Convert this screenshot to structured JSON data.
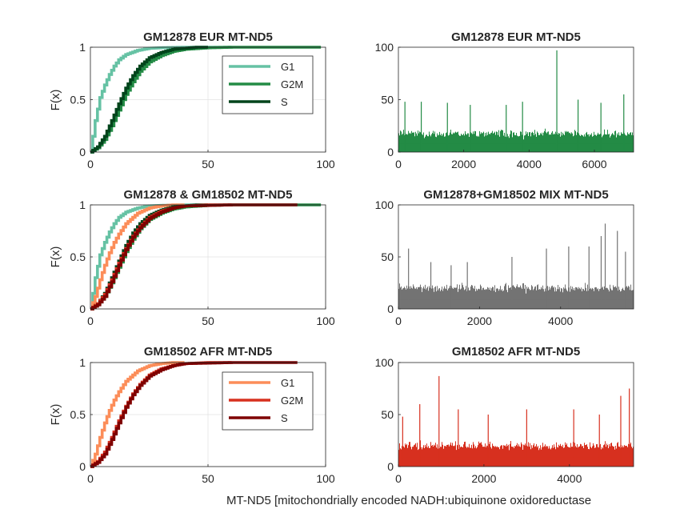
{
  "figure": {
    "xlabel": "MT-ND5 [mitochondrially encoded NADH:ubiquinone oxidoreductase"
  },
  "colors": {
    "eur_g1": "#66c2a4",
    "eur_g2m": "#238b45",
    "eur_s": "#00441b",
    "afr_g1": "#fc8d59",
    "afr_g2m": "#d7301f",
    "afr_s": "#7f0000",
    "mix_hist": "#737373"
  },
  "chart_data": [
    {
      "id": "cdf_eur",
      "type": "line",
      "title": "GM12878 EUR MT-ND5",
      "ylabel": "F(x)",
      "xlim": [
        0,
        100
      ],
      "ylim": [
        0,
        1
      ],
      "xticks": [
        "0",
        "50",
        "100"
      ],
      "yticks": [
        "0",
        "0.5",
        "1"
      ],
      "grid": true,
      "legend": "top-right",
      "series": [
        {
          "name": "G1",
          "color_key": "eur_g1",
          "x": [
            0,
            2,
            4,
            6,
            8,
            10,
            12,
            15,
            20,
            25,
            30,
            40,
            50,
            60
          ],
          "y": [
            0,
            0.3,
            0.52,
            0.64,
            0.74,
            0.82,
            0.88,
            0.93,
            0.97,
            0.99,
            0.995,
            1,
            1,
            1
          ]
        },
        {
          "name": "G2M",
          "color_key": "eur_g2m",
          "x": [
            0,
            3,
            6,
            9,
            12,
            15,
            18,
            21,
            25,
            30,
            35,
            40,
            50,
            60,
            80,
            98
          ],
          "y": [
            0,
            0.04,
            0.12,
            0.25,
            0.4,
            0.55,
            0.67,
            0.77,
            0.86,
            0.92,
            0.96,
            0.98,
            0.995,
            1,
            1,
            1
          ]
        },
        {
          "name": "S",
          "color_key": "eur_s",
          "x": [
            0,
            3,
            6,
            9,
            12,
            15,
            18,
            21,
            25,
            30,
            35,
            40,
            45,
            50
          ],
          "y": [
            0,
            0.05,
            0.15,
            0.3,
            0.46,
            0.61,
            0.73,
            0.82,
            0.9,
            0.95,
            0.98,
            0.99,
            1,
            1
          ]
        }
      ]
    },
    {
      "id": "hist_eur",
      "type": "bar",
      "title": "GM12878 EUR MT-ND5",
      "color_key": "eur_g2m",
      "xlim": [
        0,
        7200
      ],
      "ylim": [
        0,
        100
      ],
      "xticks": [
        "0",
        "2000",
        "4000",
        "6000"
      ],
      "yticks": [
        "0",
        "50",
        "100"
      ],
      "n_bars": 7200,
      "typical_height": 14,
      "typical_spread": 9,
      "peaks": [
        [
          200,
          48
        ],
        [
          700,
          48
        ],
        [
          1500,
          47
        ],
        [
          2200,
          45
        ],
        [
          3300,
          45
        ],
        [
          3800,
          48
        ],
        [
          4850,
          97
        ],
        [
          5500,
          50
        ],
        [
          6200,
          47
        ],
        [
          6900,
          55
        ]
      ]
    },
    {
      "id": "cdf_mix",
      "type": "line",
      "title": "GM12878 & GM18502 MT-ND5",
      "ylabel": "F(x)",
      "xlim": [
        0,
        100
      ],
      "ylim": [
        0,
        1
      ],
      "xticks": [
        "0",
        "50",
        "100"
      ],
      "yticks": [
        "0",
        "0.5",
        "1"
      ],
      "grid": true,
      "series": [
        {
          "color_key": "eur_g1",
          "x": [
            0,
            2,
            4,
            6,
            8,
            10,
            12,
            15,
            20,
            25,
            30,
            40,
            50,
            60
          ],
          "y": [
            0,
            0.3,
            0.52,
            0.64,
            0.74,
            0.82,
            0.88,
            0.93,
            0.97,
            0.99,
            0.995,
            1,
            1,
            1
          ]
        },
        {
          "color_key": "afr_g1",
          "x": [
            0,
            2,
            4,
            6,
            8,
            10,
            12,
            15,
            20,
            25,
            30,
            35,
            40
          ],
          "y": [
            0,
            0.12,
            0.28,
            0.42,
            0.54,
            0.64,
            0.72,
            0.82,
            0.92,
            0.97,
            0.99,
            1,
            1
          ]
        },
        {
          "color_key": "eur_g2m",
          "x": [
            0,
            3,
            6,
            9,
            12,
            15,
            18,
            21,
            25,
            30,
            35,
            40,
            50,
            60,
            80,
            98
          ],
          "y": [
            0,
            0.04,
            0.12,
            0.25,
            0.4,
            0.55,
            0.67,
            0.77,
            0.86,
            0.92,
            0.96,
            0.98,
            0.995,
            1,
            1,
            1
          ]
        },
        {
          "color_key": "eur_s",
          "x": [
            0,
            3,
            6,
            9,
            12,
            15,
            18,
            21,
            25,
            30,
            35,
            40,
            45,
            50
          ],
          "y": [
            0,
            0.05,
            0.15,
            0.3,
            0.46,
            0.61,
            0.73,
            0.82,
            0.9,
            0.95,
            0.98,
            0.99,
            1,
            1
          ]
        },
        {
          "color_key": "afr_g2m",
          "x": [
            0,
            3,
            6,
            9,
            12,
            15,
            18,
            21,
            25,
            30,
            35,
            40,
            50,
            60
          ],
          "y": [
            0,
            0.05,
            0.14,
            0.28,
            0.44,
            0.58,
            0.7,
            0.79,
            0.88,
            0.94,
            0.97,
            0.99,
            1,
            1
          ]
        },
        {
          "color_key": "afr_s",
          "x": [
            0,
            3,
            6,
            9,
            12,
            15,
            18,
            21,
            25,
            30,
            35,
            40,
            50,
            60,
            88
          ],
          "y": [
            0,
            0.04,
            0.12,
            0.26,
            0.42,
            0.57,
            0.69,
            0.78,
            0.87,
            0.93,
            0.97,
            0.99,
            0.995,
            1,
            1
          ]
        }
      ]
    },
    {
      "id": "hist_mix",
      "type": "bar",
      "title": "GM12878+GM18502 MIX MT-ND5",
      "color_key": "mix_hist",
      "xlim": [
        0,
        5800
      ],
      "ylim": [
        0,
        100
      ],
      "xticks": [
        "0",
        "2000",
        "4000"
      ],
      "yticks": [
        "0",
        "50",
        "100"
      ],
      "n_bars": 5800,
      "typical_height": 16,
      "typical_spread": 10,
      "peaks": [
        [
          250,
          58
        ],
        [
          800,
          45
        ],
        [
          1300,
          42
        ],
        [
          1700,
          45
        ],
        [
          2800,
          50
        ],
        [
          3650,
          58
        ],
        [
          4200,
          60
        ],
        [
          4700,
          60
        ],
        [
          5000,
          70
        ],
        [
          5100,
          82
        ],
        [
          5400,
          75
        ],
        [
          5600,
          55
        ]
      ]
    },
    {
      "id": "cdf_afr",
      "type": "line",
      "title": "GM18502 AFR MT-ND5",
      "ylabel": "F(x)",
      "xlim": [
        0,
        100
      ],
      "ylim": [
        0,
        1
      ],
      "xticks": [
        "0",
        "50",
        "100"
      ],
      "yticks": [
        "0",
        "0.5",
        "1"
      ],
      "grid": true,
      "legend": "top-right",
      "series": [
        {
          "name": "G1",
          "color_key": "afr_g1",
          "x": [
            0,
            2,
            4,
            6,
            8,
            10,
            12,
            15,
            20,
            25,
            30,
            35,
            40
          ],
          "y": [
            0,
            0.12,
            0.28,
            0.42,
            0.54,
            0.64,
            0.72,
            0.82,
            0.92,
            0.97,
            0.99,
            1,
            1
          ]
        },
        {
          "name": "G2M",
          "color_key": "afr_g2m",
          "x": [
            0,
            3,
            6,
            9,
            12,
            15,
            18,
            21,
            25,
            30,
            35,
            40,
            50,
            60
          ],
          "y": [
            0,
            0.05,
            0.14,
            0.28,
            0.44,
            0.58,
            0.7,
            0.79,
            0.88,
            0.94,
            0.97,
            0.99,
            1,
            1
          ]
        },
        {
          "name": "S",
          "color_key": "afr_s",
          "x": [
            0,
            3,
            6,
            9,
            12,
            15,
            18,
            21,
            25,
            30,
            35,
            40,
            50,
            60,
            88
          ],
          "y": [
            0,
            0.04,
            0.12,
            0.26,
            0.42,
            0.57,
            0.69,
            0.78,
            0.87,
            0.93,
            0.97,
            0.99,
            0.995,
            1,
            1
          ]
        }
      ]
    },
    {
      "id": "hist_afr",
      "type": "bar",
      "title": "GM18502 AFR MT-ND5",
      "color_key": "afr_g2m",
      "xlim": [
        0,
        5500
      ],
      "ylim": [
        0,
        100
      ],
      "xticks": [
        "0",
        "2000",
        "4000"
      ],
      "yticks": [
        "0",
        "50",
        "100"
      ],
      "n_bars": 5500,
      "typical_height": 16,
      "typical_spread": 10,
      "peaks": [
        [
          100,
          48
        ],
        [
          500,
          60
        ],
        [
          950,
          87
        ],
        [
          1400,
          55
        ],
        [
          2100,
          50
        ],
        [
          3000,
          55
        ],
        [
          4100,
          55
        ],
        [
          4700,
          50
        ],
        [
          5200,
          68
        ],
        [
          5400,
          75
        ]
      ]
    }
  ]
}
